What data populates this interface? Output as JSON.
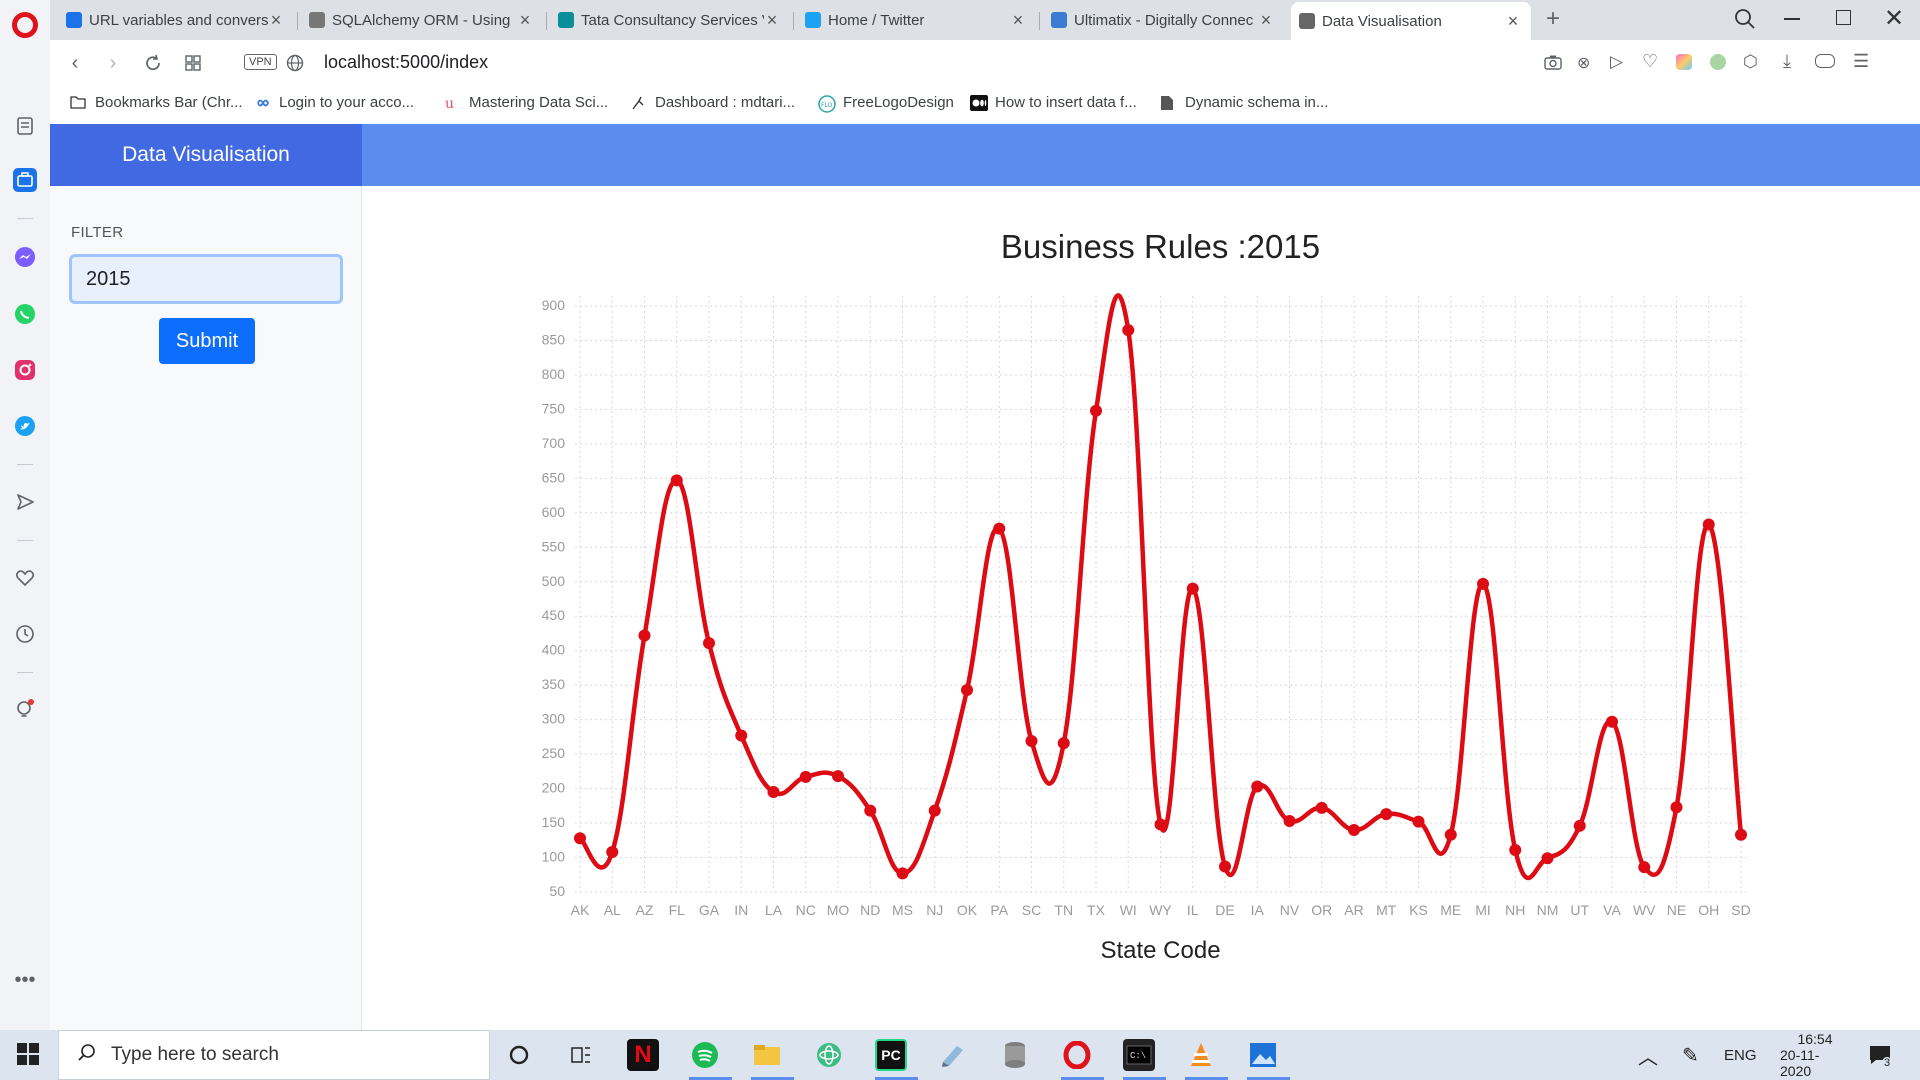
{
  "browser": {
    "tabs": [
      {
        "title": "URL variables and conversi",
        "favicon_color": "#1a73e8",
        "active": false
      },
      {
        "title": "SQLAlchemy ORM - Using",
        "favicon_color": "#777777",
        "active": false
      },
      {
        "title": "Tata Consultancy Services V",
        "favicon_color": "#0a8f9a",
        "active": false
      },
      {
        "title": "Home / Twitter",
        "favicon_color": "#1da1f2",
        "active": false
      },
      {
        "title": "Ultimatix - Digitally Connec",
        "favicon_color": "#3b7bd4",
        "active": false
      },
      {
        "title": "Data Visualisation",
        "favicon_color": "#666666",
        "active": true
      }
    ],
    "url": "localhost:5000/index",
    "vpn_label": "VPN",
    "bookmarks": [
      {
        "label": "Bookmarks Bar (Chr...",
        "icon": "folder-icon"
      },
      {
        "label": "Login to your acco...",
        "icon": "infinity-icon"
      },
      {
        "label": "Mastering Data Sci...",
        "icon": "udemy-icon"
      },
      {
        "label": "Dashboard : mdtari...",
        "icon": "hackerrank-icon"
      },
      {
        "label": "FreeLogoDesign",
        "icon": "flo-icon"
      },
      {
        "label": "How to insert data f...",
        "icon": "medium-icon"
      },
      {
        "label": "Dynamic schema in...",
        "icon": "document-icon"
      }
    ]
  },
  "app": {
    "brand": "Data Visualisation",
    "filter_label": "FILTER",
    "filter_value": "2015",
    "submit_label": "Submit",
    "colors": {
      "brand": "#4169e1",
      "topbar": "#5b8def",
      "button": "#0d6efd",
      "line": "#dd0c14"
    }
  },
  "chart_data": {
    "type": "line",
    "title": "Business Rules :2015",
    "xlabel": "State Code",
    "ylabel": "",
    "ylim": [
      50,
      900
    ],
    "yticks": [
      50,
      100,
      150,
      200,
      250,
      300,
      350,
      400,
      450,
      500,
      550,
      600,
      650,
      700,
      750,
      800,
      850,
      900
    ],
    "grid": true,
    "categories": [
      "AK",
      "AL",
      "AZ",
      "FL",
      "GA",
      "IN",
      "LA",
      "NC",
      "MO",
      "ND",
      "MS",
      "NJ",
      "OK",
      "PA",
      "SC",
      "TN",
      "TX",
      "WI",
      "WY",
      "IL",
      "DE",
      "IA",
      "NV",
      "OR",
      "AR",
      "MT",
      "KS",
      "ME",
      "MI",
      "NH",
      "NM",
      "UT",
      "VA",
      "WV",
      "NE",
      "OH",
      "SD"
    ],
    "series": [
      {
        "values": [
          128,
          108,
          422,
          647,
          411,
          277,
          195,
          217,
          218,
          168,
          77,
          168,
          343,
          577,
          269,
          266,
          748,
          865,
          148,
          490,
          87,
          203,
          153,
          172,
          140,
          163,
          152,
          133,
          497,
          111,
          99,
          146,
          297,
          86,
          173,
          583,
          133
        ]
      }
    ]
  },
  "taskbar": {
    "search_placeholder": "Type here to search",
    "language": "ENG",
    "time": "16:54",
    "date": "20-11-2020",
    "notification_count": "3"
  }
}
